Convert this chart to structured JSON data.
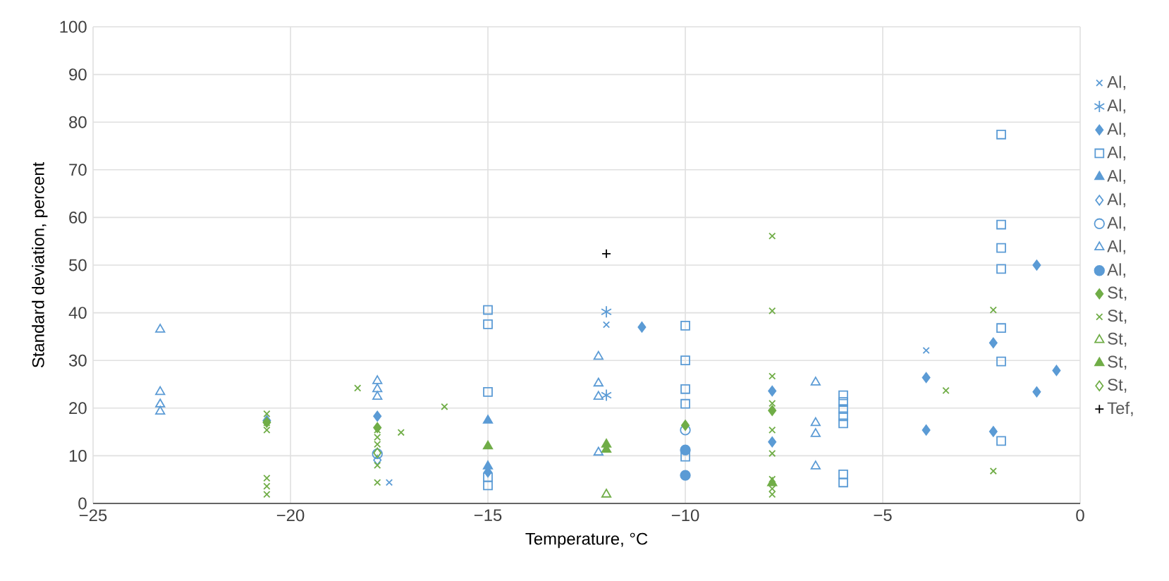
{
  "chart_data": {
    "type": "scatter",
    "xlabel": "Temperature, °C",
    "ylabel": "Standard deviation, percent",
    "xlim": [
      -25,
      0
    ],
    "xticks": [
      {
        "value": -25,
        "label": "−25"
      },
      {
        "value": -20,
        "label": "−20"
      },
      {
        "value": -15,
        "label": "−15"
      },
      {
        "value": -10,
        "label": "−10"
      },
      {
        "value": -5,
        "label": "−5"
      },
      0
    ],
    "ylim": [
      0,
      100
    ],
    "yticks": [
      0,
      10,
      20,
      30,
      40,
      50,
      60,
      70,
      80,
      90,
      100
    ],
    "grid": true,
    "legend": "right",
    "series": [
      {
        "name": "Al,",
        "color": "#5b9bd5",
        "marker": "cross",
        "x": [
          -17.5,
          -12,
          -3.9
        ],
        "values": [
          4.4,
          37.5,
          32.1
        ]
      },
      {
        "name": "Al,",
        "color": "#5b9bd5",
        "x": [
          -12,
          -12
        ],
        "values": [
          40.2,
          22.7
        ]
      },
      {
        "name": "Al,",
        "color": "#5b9bd5",
        "marker": "diamond",
        "x": [
          -20.6,
          -17.8,
          -15,
          -11.1,
          -7.8,
          -7.8,
          -3.9,
          -3.9,
          -2.2,
          -2.2,
          -1.1,
          -1.1,
          -0.6
        ],
        "values": [
          17.4,
          18.3,
          6.6,
          37,
          23.6,
          12.9,
          26.4,
          15.4,
          33.7,
          15.1,
          50,
          23.4,
          27.9
        ]
      },
      {
        "name": "Al,",
        "color": "#5b9bd5",
        "marker": "square-open",
        "x": [
          -15,
          -15,
          -15,
          -15,
          -15,
          -10,
          -10,
          -10,
          -10,
          -10,
          -6,
          -6,
          -6,
          -6,
          -6,
          -6,
          -6,
          -2,
          -2,
          -2,
          -2,
          -2,
          -2,
          -2
        ],
        "values": [
          40.6,
          37.6,
          23.4,
          5.5,
          3.8,
          37.3,
          30,
          24,
          20.9,
          9.8,
          22.7,
          21.3,
          19.8,
          18.3,
          16.8,
          6.1,
          4.4,
          77.4,
          58.5,
          53.6,
          49.2,
          36.8,
          29.8,
          13.1
        ]
      },
      {
        "name": "Al,",
        "color": "#5b9bd5",
        "marker": "triangle",
        "x": [
          -15,
          -15
        ],
        "values": [
          17.4,
          7.8
        ]
      },
      {
        "name": "Al,",
        "color": "#5b9bd5",
        "marker": "diamond-open",
        "x": [
          -17.8
        ],
        "values": [
          9.1
        ]
      },
      {
        "name": "Al,",
        "color": "#5b9bd5",
        "marker": "circle-open",
        "x": [
          -17.8,
          -10
        ],
        "values": [
          10.4,
          15.4
        ]
      },
      {
        "name": "Al,",
        "color": "#5b9bd5",
        "marker": "triangle-open",
        "x": [
          -23.3,
          -23.3,
          -23.3,
          -23.3,
          -17.8,
          -17.8,
          -17.8,
          -12.2,
          -12.2,
          -12.2,
          -12.2,
          -6.7,
          -6.7,
          -6.7,
          -6.7
        ],
        "values": [
          36.5,
          23.4,
          20.8,
          19.3,
          25.7,
          24,
          22.4,
          30.8,
          25.2,
          22.4,
          10.7,
          25.4,
          16.9,
          14.6,
          7.8
        ]
      },
      {
        "name": "Al,",
        "color": "#5b9bd5",
        "marker": "circle",
        "x": [
          -10,
          -10
        ],
        "values": [
          11.2,
          5.9
        ]
      },
      {
        "name": "St,",
        "color": "#70ad47",
        "marker": "diamond",
        "x": [
          -20.6,
          -17.8,
          -10,
          -7.8
        ],
        "values": [
          17,
          15.9,
          16.4,
          19.5
        ]
      },
      {
        "name": "St,",
        "color": "#70ad47",
        "marker": "cross",
        "x": [
          -20.6,
          -20.6,
          -20.6,
          -20.6,
          -20.6,
          -20.6,
          -18.3,
          -17.8,
          -17.8,
          -17.8,
          -17.8,
          -17.8,
          -17.2,
          -16.1,
          -7.8,
          -7.8,
          -7.8,
          -7.8,
          -7.8,
          -7.8,
          -7.8,
          -7.8,
          -7.8,
          -3.4,
          -2.2,
          -2.2
        ],
        "values": [
          18.8,
          16.9,
          15.4,
          5.3,
          3.6,
          1.9,
          24.2,
          15.4,
          13.9,
          12.4,
          8,
          4.4,
          14.9,
          20.3,
          56.1,
          40.4,
          26.7,
          21,
          15.4,
          10.5,
          5.1,
          3.1,
          1.9,
          23.7,
          40.6,
          6.8
        ]
      },
      {
        "name": "St,",
        "color": "#70ad47",
        "marker": "triangle-open",
        "x": [
          -12
        ],
        "values": [
          1.9
        ]
      },
      {
        "name": "St,",
        "color": "#70ad47",
        "marker": "triangle",
        "x": [
          -15,
          -12,
          -12,
          -7.8
        ],
        "values": [
          12,
          12.4,
          11.3,
          4.3
        ]
      },
      {
        "name": "St,",
        "color": "#70ad47",
        "marker": "diamond-open",
        "x": [
          -17.8
        ],
        "values": [
          10.6
        ]
      },
      {
        "name": "Tef,",
        "color": "#000000",
        "marker": "plus",
        "x": [
          -12
        ],
        "values": [
          52.4
        ]
      }
    ]
  }
}
